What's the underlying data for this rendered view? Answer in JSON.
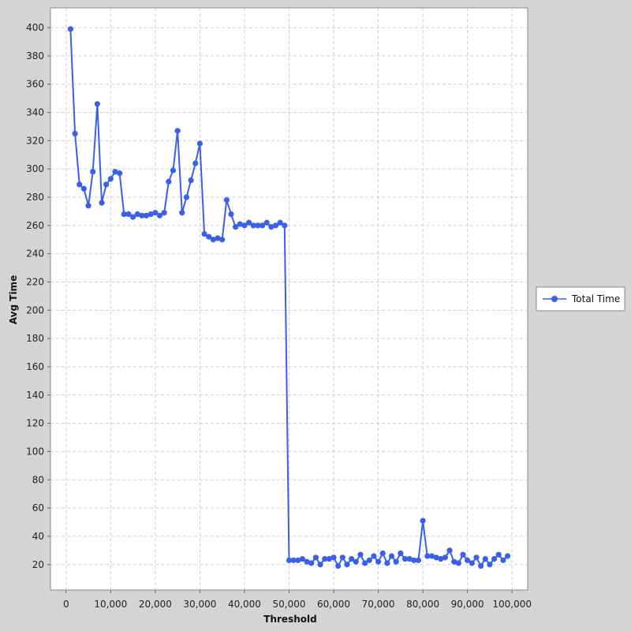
{
  "chart_data": {
    "type": "line",
    "title": "",
    "xlabel": "Threshold",
    "ylabel": "Avg Time",
    "xlim": [
      -3500,
      103500
    ],
    "ylim": [
      2,
      414
    ],
    "x_ticks": [
      0,
      10000,
      20000,
      30000,
      40000,
      50000,
      60000,
      70000,
      80000,
      90000,
      100000
    ],
    "x_tick_labels": [
      "0",
      "10,000",
      "20,000",
      "30,000",
      "40,000",
      "50,000",
      "60,000",
      "70,000",
      "80,000",
      "90,000",
      "100,000"
    ],
    "y_ticks": [
      20,
      40,
      60,
      80,
      100,
      120,
      140,
      160,
      180,
      200,
      220,
      240,
      260,
      280,
      300,
      320,
      340,
      360,
      380,
      400
    ],
    "y_tick_labels": [
      "20",
      "40",
      "60",
      "80",
      "100",
      "120",
      "140",
      "160",
      "180",
      "200",
      "220",
      "240",
      "260",
      "280",
      "300",
      "320",
      "340",
      "360",
      "380",
      "400"
    ],
    "grid": true,
    "legend_position": "right",
    "series": [
      {
        "name": "Total Time",
        "color": "#3a5fe8",
        "x": [
          1000,
          2000,
          3000,
          4000,
          5000,
          6000,
          7000,
          8000,
          9000,
          10000,
          11000,
          12000,
          13000,
          14000,
          15000,
          16000,
          17000,
          18000,
          19000,
          20000,
          21000,
          22000,
          23000,
          24000,
          25000,
          26000,
          27000,
          28000,
          29000,
          30000,
          31000,
          32000,
          33000,
          34000,
          35000,
          36000,
          37000,
          38000,
          39000,
          40000,
          41000,
          42000,
          43000,
          44000,
          45000,
          46000,
          47000,
          48000,
          49000,
          50000,
          51000,
          52000,
          53000,
          54000,
          55000,
          56000,
          57000,
          58000,
          59000,
          60000,
          61000,
          62000,
          63000,
          64000,
          65000,
          66000,
          67000,
          68000,
          69000,
          70000,
          71000,
          72000,
          73000,
          74000,
          75000,
          76000,
          77000,
          78000,
          79000,
          80000,
          81000,
          82000,
          83000,
          84000,
          85000,
          86000,
          87000,
          88000,
          89000,
          90000,
          91000,
          92000,
          93000,
          94000,
          95000,
          96000,
          97000,
          98000,
          99000
        ],
        "values": [
          399,
          325,
          289,
          286,
          274,
          298,
          346,
          276,
          289,
          293,
          298,
          297,
          268,
          268,
          266,
          268,
          267,
          267,
          268,
          269,
          267,
          269,
          291,
          299,
          327,
          269,
          280,
          292,
          304,
          318,
          254,
          252,
          250,
          251,
          250,
          278,
          268,
          259,
          261,
          260,
          262,
          260,
          260,
          260,
          262,
          259,
          260,
          262,
          260,
          23,
          23,
          23,
          24,
          22,
          21,
          25,
          20,
          24,
          24,
          25,
          19,
          25,
          20,
          24,
          22,
          27,
          21,
          23,
          26,
          22,
          28,
          21,
          26,
          22,
          28,
          24,
          24,
          23,
          23,
          51,
          26,
          26,
          25,
          24,
          25,
          30,
          22,
          21,
          27,
          23,
          21,
          25,
          19,
          24,
          20,
          24,
          27,
          23,
          26
        ]
      }
    ]
  }
}
